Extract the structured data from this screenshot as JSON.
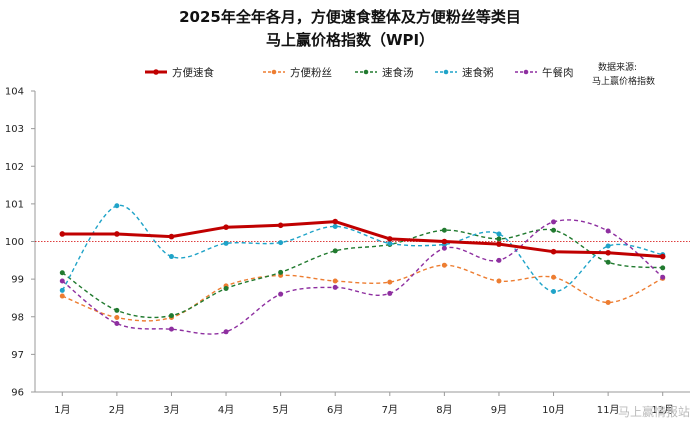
{
  "chart_data": {
    "type": "line",
    "title": "2025年全年各月，方便速食整体及方便粉丝等类目",
    "subtitle": "马上赢价格指数（WPI）",
    "source_line1": "数据来源:",
    "source_line2": "马上赢价格指数",
    "watermark": "马上赢情报站",
    "categories": [
      "1月",
      "2月",
      "3月",
      "4月",
      "5月",
      "6月",
      "7月",
      "8月",
      "9月",
      "10月",
      "11月",
      "12月"
    ],
    "ylim": [
      96,
      104
    ],
    "yticks": [
      "96",
      "97",
      "98",
      "99",
      "100",
      "101",
      "102",
      "103",
      "104"
    ],
    "reference_line": 100,
    "series": [
      {
        "name": "方便速食",
        "color": "#c00000",
        "style": "solid",
        "values": [
          100.2,
          100.2,
          100.13,
          100.38,
          100.43,
          100.53,
          100.07,
          100.0,
          99.93,
          99.73,
          99.7,
          99.6
        ]
      },
      {
        "name": "方便粉丝",
        "color": "#ed7d31",
        "style": "dashed",
        "values": [
          98.55,
          97.98,
          97.98,
          98.82,
          99.1,
          98.95,
          98.92,
          99.37,
          98.95,
          99.05,
          98.38,
          99.02
        ]
      },
      {
        "name": "速食汤",
        "color": "#217a2f",
        "style": "dashed",
        "values": [
          99.17,
          98.17,
          98.03,
          98.75,
          99.18,
          99.75,
          99.92,
          100.3,
          100.07,
          100.3,
          99.45,
          99.3
        ]
      },
      {
        "name": "速食粥",
        "color": "#1fa3c8",
        "style": "dashed",
        "values": [
          98.7,
          100.95,
          99.6,
          99.95,
          99.97,
          100.4,
          99.95,
          99.92,
          100.2,
          98.67,
          99.88,
          99.65
        ]
      },
      {
        "name": "午餐肉",
        "color": "#8e2fa0",
        "style": "dashed",
        "values": [
          98.95,
          97.82,
          97.67,
          97.6,
          98.6,
          98.78,
          98.62,
          99.82,
          99.5,
          100.52,
          100.28,
          99.05
        ]
      }
    ]
  }
}
